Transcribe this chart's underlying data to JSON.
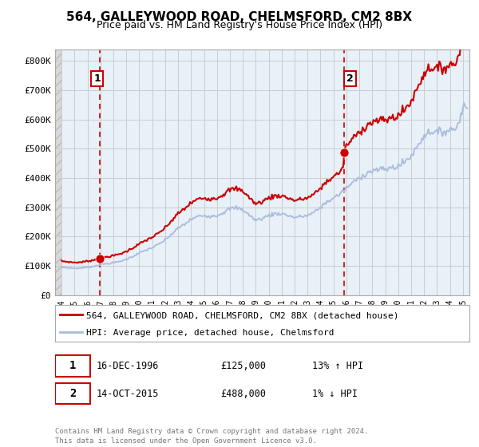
{
  "title": "564, GALLEYWOOD ROAD, CHELMSFORD, CM2 8BX",
  "subtitle": "Price paid vs. HM Land Registry's House Price Index (HPI)",
  "legend_line1": "564, GALLEYWOOD ROAD, CHELMSFORD, CM2 8BX (detached house)",
  "legend_line2": "HPI: Average price, detached house, Chelmsford",
  "transaction1_date": "16-DEC-1996",
  "transaction1_price": "£125,000",
  "transaction1_hpi": "13% ↑ HPI",
  "transaction2_date": "14-OCT-2015",
  "transaction2_price": "£488,000",
  "transaction2_hpi": "1% ↓ HPI",
  "footer": "Contains HM Land Registry data © Crown copyright and database right 2024.\nThis data is licensed under the Open Government Licence v3.0.",
  "hpi_color": "#aabbdd",
  "price_color": "#cc0000",
  "marker_color": "#cc0000",
  "vline_color": "#cc0000",
  "grid_color": "#cccccc",
  "bg_color": "#ffffff",
  "plot_bg_color": "#e8f0f8",
  "ylim": [
    0,
    840000
  ],
  "yticks": [
    0,
    100000,
    200000,
    300000,
    400000,
    500000,
    600000,
    700000,
    800000
  ],
  "ytick_labels": [
    "£0",
    "£100K",
    "£200K",
    "£300K",
    "£400K",
    "£500K",
    "£600K",
    "£700K",
    "£800K"
  ],
  "transaction1_x": 1996.96,
  "transaction1_y": 125000,
  "transaction2_x": 2015.79,
  "transaction2_y": 488000,
  "xmin": 1993.5,
  "xmax": 2025.5
}
